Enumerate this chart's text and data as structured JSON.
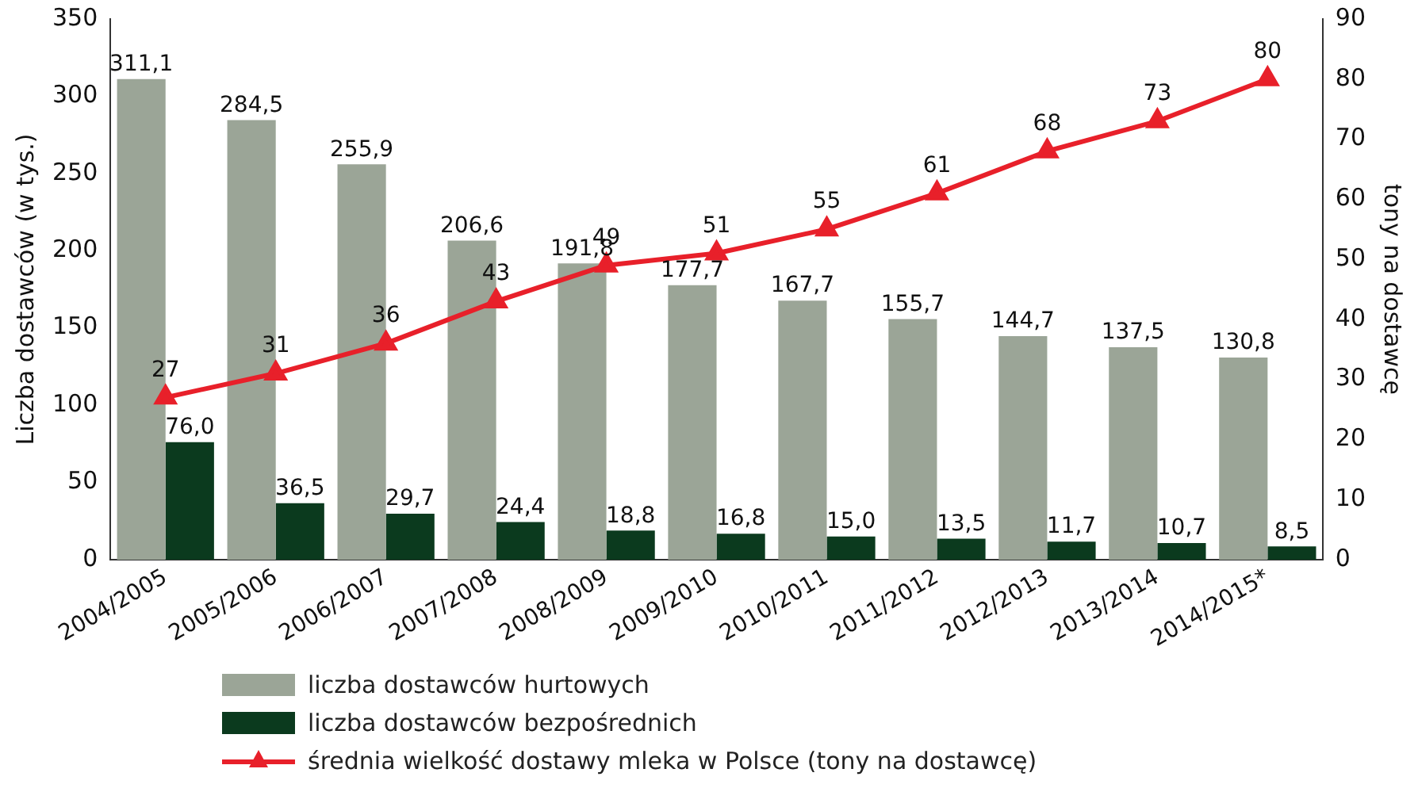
{
  "chart_data": {
    "type": "bar",
    "ylabel": "Liczba dostawców (w tys.)",
    "y2label": "tony na dostawcę",
    "categories": [
      "2004/2005",
      "2005/2006",
      "2006/2007",
      "2007/2008",
      "2008/2009",
      "2009/2010",
      "2010/2011",
      "2011/2012",
      "2012/2013",
      "2013/2014",
      "2014/2015*"
    ],
    "series": [
      {
        "name": "liczba dostawców hurtowych",
        "color": "#9ba597",
        "values": [
          311.1,
          284.5,
          255.9,
          206.6,
          191.8,
          177.7,
          167.7,
          155.7,
          144.7,
          137.5,
          130.8
        ],
        "value_labels": [
          "311,1",
          "284,5",
          "255,9",
          "206,6",
          "191,8",
          "177,7",
          "167,7",
          "155,7",
          "144,7",
          "137,5",
          "130,8"
        ]
      },
      {
        "name": "liczba dostawców bezpośrednich",
        "color": "#0b3a1e",
        "values": [
          76.0,
          36.5,
          29.7,
          24.4,
          18.8,
          16.8,
          15.0,
          13.5,
          11.7,
          10.7,
          8.5
        ],
        "value_labels": [
          "76,0",
          "36,5",
          "29,7",
          "24,4",
          "18,8",
          "16,8",
          "15,0",
          "13,5",
          "11,7",
          "10,7",
          "8,5"
        ]
      },
      {
        "name": "średnia wielkość dostawy mleka w Polsce (tony na dostawcę)",
        "type": "line",
        "axis": "y2",
        "color": "#e8202a",
        "values": [
          27,
          31,
          36,
          43,
          49,
          51,
          55,
          61,
          68,
          73,
          80
        ],
        "value_labels": [
          "27",
          "31",
          "36",
          "43",
          "49",
          "51",
          "55",
          "61",
          "68",
          "73",
          "80"
        ]
      }
    ],
    "ylim": [
      0,
      350
    ],
    "yticks": [
      0,
      50,
      100,
      150,
      200,
      250,
      300,
      350
    ],
    "y2lim": [
      0,
      90
    ],
    "y2ticks": [
      0,
      10,
      20,
      30,
      40,
      50,
      60,
      70,
      80,
      90
    ],
    "grid": false,
    "legend": "bottom",
    "marker": "triangle",
    "line_style": "solid"
  }
}
